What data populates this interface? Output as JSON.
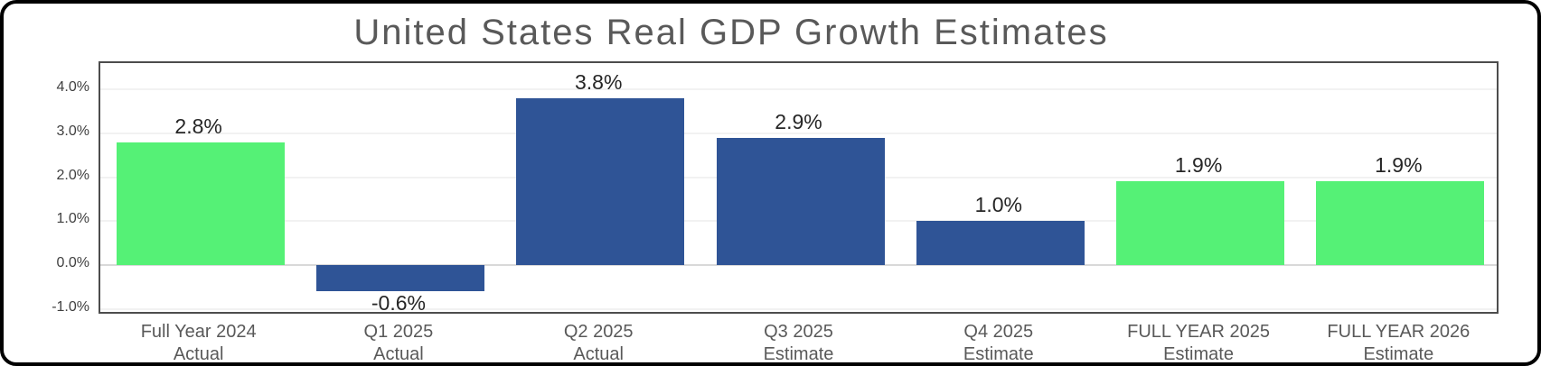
{
  "chart_data": {
    "type": "bar",
    "title": "United States Real GDP Growth Estimates",
    "categories": [
      [
        "Full Year 2024",
        "Actual"
      ],
      [
        "Q1 2025",
        "Actual"
      ],
      [
        "Q2 2025",
        "Actual"
      ],
      [
        "Q3 2025",
        "Estimate"
      ],
      [
        "Q4 2025",
        "Estimate"
      ],
      [
        "FULL YEAR 2025",
        "Estimate"
      ],
      [
        "FULL YEAR 2026",
        "Estimate"
      ]
    ],
    "values": [
      2.8,
      -0.6,
      3.8,
      2.9,
      1.0,
      1.9,
      1.9
    ],
    "value_labels": [
      "2.8%",
      "-0.6%",
      "3.8%",
      "2.9%",
      "1.0%",
      "1.9%",
      "1.9%"
    ],
    "bar_colors": [
      "#55F176",
      "#2F5496",
      "#2F5496",
      "#2F5496",
      "#2F5496",
      "#55F176",
      "#55F176"
    ],
    "y_ticks": [
      {
        "value": 4.0,
        "label": "4.0%"
      },
      {
        "value": 3.0,
        "label": "3.0%"
      },
      {
        "value": 2.0,
        "label": "2.0%"
      },
      {
        "value": 1.0,
        "label": "1.0%"
      },
      {
        "value": 0.0,
        "label": "0.0%"
      },
      {
        "value": -1.0,
        "label": "-1.0%"
      }
    ],
    "ylim": [
      -1.15,
      4.6
    ],
    "xlabel": "",
    "ylabel": "",
    "grid": true,
    "legend": false
  },
  "colors": {
    "green_bar": "#55F176",
    "blue_bar": "#2F5496",
    "title_text": "#595959",
    "axis_tick_text": "#404040",
    "value_label_text": "#262626",
    "category_text": "#595959",
    "gridline": "#F2F2F2",
    "zero_line": "#D9D9D9",
    "plot_border": "#4D4D4D",
    "card_border": "#000000",
    "background": "#FFFFFF"
  }
}
